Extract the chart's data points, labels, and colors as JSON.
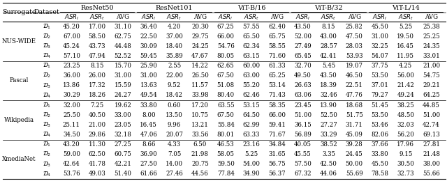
{
  "group_names": [
    "ResNet50",
    "ResNet101",
    "ViT-B/16",
    "ViT-B/32",
    "ViT-L/14"
  ],
  "surrogates": [
    "NUS-WIDE",
    "Pascal",
    "Wikipedia",
    "XmediaNet"
  ],
  "rows": [
    {
      "surrogate": "NUS-WIDE",
      "dataset": "1",
      "data": [
        45.2,
        17.0,
        31.1,
        36.4,
        4.2,
        20.3,
        67.25,
        57.55,
        62.4,
        43.5,
        8.15,
        25.82,
        45.5,
        5.25,
        25.38
      ]
    },
    {
      "surrogate": "NUS-WIDE",
      "dataset": "2",
      "data": [
        67.0,
        58.5,
        62.75,
        22.5,
        37.0,
        29.75,
        66.0,
        65.5,
        65.75,
        52.0,
        43.0,
        47.5,
        31.0,
        19.5,
        25.25
      ]
    },
    {
      "surrogate": "NUS-WIDE",
      "dataset": "3",
      "data": [
        45.24,
        43.73,
        44.48,
        30.09,
        18.4,
        24.25,
        54.76,
        62.34,
        58.55,
        27.49,
        28.57,
        28.03,
        32.25,
        16.45,
        24.35
      ]
    },
    {
      "surrogate": "NUS-WIDE",
      "dataset": "4",
      "data": [
        57.1,
        47.94,
        52.52,
        59.45,
        35.89,
        47.67,
        80.05,
        63.15,
        71.6,
        65.45,
        42.41,
        53.93,
        54.07,
        11.95,
        33.01
      ]
    },
    {
      "surrogate": "Pascal",
      "dataset": "1",
      "data": [
        23.25,
        8.15,
        15.7,
        25.9,
        2.55,
        14.22,
        62.65,
        60.0,
        61.33,
        32.7,
        5.45,
        19.07,
        37.75,
        4.25,
        21.0
      ]
    },
    {
      "surrogate": "Pascal",
      "dataset": "2",
      "data": [
        36.0,
        26.0,
        31.0,
        31.0,
        22.0,
        26.5,
        67.5,
        63.0,
        65.25,
        49.5,
        43.5,
        46.5,
        53.5,
        56.0,
        54.75
      ]
    },
    {
      "surrogate": "Pascal",
      "dataset": "3",
      "data": [
        13.86,
        17.32,
        15.59,
        13.63,
        9.52,
        11.57,
        51.08,
        55.2,
        53.14,
        26.63,
        18.39,
        22.51,
        37.01,
        21.42,
        29.21
      ]
    },
    {
      "surrogate": "Pascal",
      "dataset": "4",
      "data": [
        30.29,
        18.26,
        24.27,
        49.54,
        18.42,
        33.98,
        80.4,
        62.46,
        71.43,
        63.06,
        32.46,
        47.76,
        79.27,
        49.24,
        64.25
      ]
    },
    {
      "surrogate": "Wikipedia",
      "dataset": "1",
      "data": [
        32.0,
        7.25,
        19.62,
        33.8,
        0.6,
        17.2,
        63.55,
        53.15,
        58.35,
        23.45,
        13.9,
        18.68,
        51.45,
        38.25,
        44.85
      ]
    },
    {
      "surrogate": "Wikipedia",
      "dataset": "2",
      "data": [
        25.5,
        40.5,
        33.0,
        8.0,
        13.5,
        10.75,
        67.5,
        64.5,
        66.0,
        51.0,
        52.5,
        51.75,
        53.5,
        48.5,
        51.0
      ]
    },
    {
      "surrogate": "Wikipedia",
      "dataset": "3",
      "data": [
        25.11,
        21.0,
        23.05,
        16.45,
        9.96,
        13.21,
        55.84,
        62.99,
        59.41,
        36.15,
        27.27,
        31.71,
        53.46,
        32.03,
        42.74
      ]
    },
    {
      "surrogate": "Wikipedia",
      "dataset": "4",
      "data": [
        34.5,
        29.86,
        32.18,
        47.06,
        20.07,
        33.56,
        80.01,
        63.33,
        71.67,
        56.89,
        33.29,
        45.09,
        82.06,
        56.2,
        69.13
      ]
    },
    {
      "surrogate": "XmediaNet",
      "dataset": "1",
      "data": [
        43.2,
        11.3,
        27.25,
        8.66,
        4.33,
        6.5,
        46.53,
        23.16,
        34.84,
        40.05,
        38.52,
        39.28,
        37.66,
        17.96,
        27.81
      ]
    },
    {
      "surrogate": "XmediaNet",
      "dataset": "2",
      "data": [
        59.0,
        62.5,
        60.75,
        36.9,
        7.05,
        21.98,
        58.05,
        5.25,
        31.65,
        45.55,
        3.35,
        24.45,
        33.8,
        9.15,
        21.48
      ]
    },
    {
      "surrogate": "XmediaNet",
      "dataset": "3",
      "data": [
        42.64,
        41.78,
        42.21,
        27.5,
        14.0,
        20.75,
        59.5,
        54.0,
        56.75,
        57.5,
        42.5,
        50.0,
        45.5,
        30.5,
        38.0
      ]
    },
    {
      "surrogate": "XmediaNet",
      "dataset": "4",
      "data": [
        53.76,
        49.03,
        51.4,
        61.66,
        27.46,
        44.56,
        77.84,
        34.9,
        56.37,
        67.32,
        44.06,
        55.69,
        78.58,
        32.73,
        55.66
      ]
    }
  ],
  "font_size": 6.2,
  "header_font_size": 6.8
}
